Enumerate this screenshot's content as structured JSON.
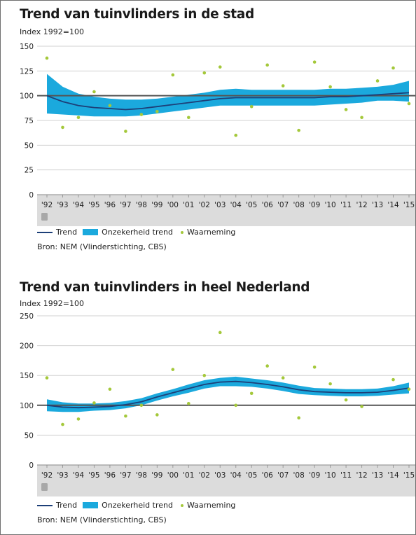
{
  "chart_data": [
    {
      "type": "line",
      "title": "Trend van tuinvlinders in de stad",
      "subtitle": "Index 1992=100",
      "xlabel": "",
      "ylabel": "",
      "categories": [
        "'92",
        "'93",
        "'94",
        "'95",
        "'96",
        "'97",
        "'98",
        "'99",
        "'00",
        "'01",
        "'02",
        "'03",
        "'04",
        "'05",
        "'06",
        "'07",
        "'08",
        "'09",
        "'10",
        "'11",
        "'12",
        "'13",
        "'14",
        "'15"
      ],
      "yticks": [
        0,
        25,
        50,
        75,
        100,
        125,
        150
      ],
      "ylim": [
        0,
        150
      ],
      "reference_line": 100,
      "grid": true,
      "series": [
        {
          "name": "Trend",
          "kind": "line",
          "values": [
            100,
            94,
            90,
            88,
            87,
            86,
            87,
            89,
            91,
            93,
            95,
            97,
            98,
            98,
            98,
            98,
            98,
            98,
            99,
            99,
            100,
            101,
            102,
            103
          ]
        },
        {
          "name": "Onzekerheid trend",
          "kind": "band",
          "lower": [
            82,
            81,
            80,
            79,
            79,
            79,
            80,
            82,
            84,
            86,
            88,
            90,
            90,
            90,
            90,
            90,
            90,
            90,
            91,
            92,
            93,
            95,
            95,
            94
          ],
          "upper": [
            122,
            109,
            102,
            99,
            97,
            96,
            96,
            97,
            99,
            101,
            103,
            106,
            107,
            106,
            106,
            106,
            106,
            106,
            107,
            107,
            108,
            109,
            111,
            115
          ]
        },
        {
          "name": "Waarneming",
          "kind": "scatter",
          "values": [
            138,
            68,
            78,
            104,
            90,
            64,
            81,
            84,
            121,
            78,
            123,
            129,
            60,
            89,
            131,
            110,
            65,
            134,
            109,
            86,
            78,
            115,
            128,
            92
          ]
        }
      ],
      "legend": "bottom-left",
      "source": "Bron: NEM (Vlinderstichting, CBS)"
    },
    {
      "type": "line",
      "title": "Trend van tuinvlinders in heel Nederland",
      "subtitle": "Index 1992=100",
      "xlabel": "",
      "ylabel": "",
      "categories": [
        "'92",
        "'93",
        "'94",
        "'95",
        "'96",
        "'97",
        "'98",
        "'99",
        "'00",
        "'01",
        "'02",
        "'03",
        "'04",
        "'05",
        "'06",
        "'07",
        "'08",
        "'09",
        "'10",
        "'11",
        "'12",
        "'13",
        "'14",
        "'15"
      ],
      "yticks": [
        0,
        50,
        100,
        150,
        200,
        250
      ],
      "ylim": [
        0,
        250
      ],
      "reference_line": 100,
      "grid": true,
      "series": [
        {
          "name": "Trend",
          "kind": "line",
          "values": [
            100,
            97,
            96,
            97,
            98,
            101,
            106,
            114,
            121,
            128,
            135,
            139,
            140,
            138,
            135,
            131,
            126,
            123,
            122,
            121,
            121,
            122,
            125,
            129
          ]
        },
        {
          "name": "Onzekerheid trend",
          "kind": "band",
          "lower": [
            90,
            89,
            89,
            91,
            92,
            95,
            100,
            108,
            115,
            121,
            128,
            132,
            132,
            131,
            128,
            124,
            119,
            117,
            116,
            115,
            115,
            116,
            118,
            120
          ]
        },
        {
          "name": "Waarneming",
          "kind": "scatter",
          "values": [
            146,
            68,
            77,
            104,
            127,
            82,
            100,
            84,
            160,
            103,
            150,
            222,
            100,
            120,
            166,
            146,
            79,
            164,
            136,
            109,
            98,
            null,
            143,
            127
          ]
        }
      ],
      "legend": "bottom-left",
      "source": "Bron: NEM (Vlinderstichting, CBS)"
    }
  ],
  "legend_labels": {
    "trend": "Trend",
    "band": "Onzekerheid trend",
    "obs": "Waarneming"
  },
  "colors": {
    "trend": "#1d3f78",
    "band": "#1ba9dd",
    "obs": "#a4c83a",
    "reference": "#555555",
    "axis_strip": "#dcdcdc",
    "grid": "#d0d0d0"
  }
}
